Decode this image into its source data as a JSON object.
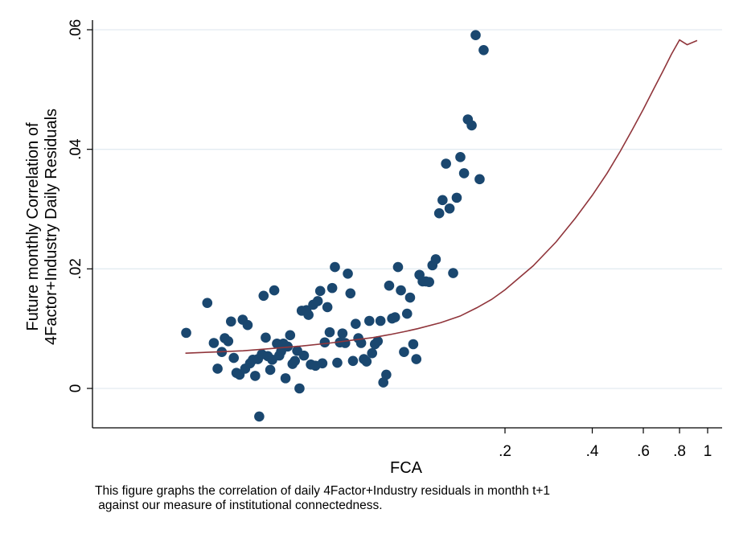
{
  "chart_data": {
    "type": "scatter",
    "xlabel": "FCA",
    "ylabel_lines": [
      "Future monthly Correlation of",
      "4Factor+Industry Daily Residuals"
    ],
    "x_scale": "log",
    "xlim": [
      0.015,
      1.0
    ],
    "ylim": [
      -0.0065,
      0.062
    ],
    "x_ticks": [
      {
        "value": 0.2,
        "label": ".2"
      },
      {
        "value": 0.4,
        "label": ".4"
      },
      {
        "value": 0.6,
        "label": ".6"
      },
      {
        "value": 0.8,
        "label": ".8"
      },
      {
        "value": 1.0,
        "label": "1"
      }
    ],
    "y_ticks": [
      {
        "value": 0,
        "label": "0"
      },
      {
        "value": 0.02,
        "label": ".02"
      },
      {
        "value": 0.04,
        "label": ".04"
      },
      {
        "value": 0.06,
        "label": ".06"
      }
    ],
    "grid": "horizontal",
    "marker_color": "#1a476f",
    "fit_color": "#90353b",
    "fit_curve": {
      "x": [
        0.0158,
        0.02,
        0.025,
        0.03,
        0.04,
        0.05,
        0.06,
        0.07,
        0.08,
        0.09,
        0.1,
        0.12,
        0.14,
        0.16,
        0.18,
        0.2,
        0.25,
        0.3,
        0.35,
        0.4,
        0.45,
        0.5,
        0.55,
        0.6,
        0.65,
        0.7,
        0.75,
        0.8,
        0.85,
        0.92
      ],
      "y": [
        0.0059,
        0.0061,
        0.0063,
        0.0066,
        0.0071,
        0.0076,
        0.0081,
        0.0085,
        0.009,
        0.0095,
        0.01,
        0.011,
        0.0121,
        0.0135,
        0.0149,
        0.0165,
        0.0205,
        0.0245,
        0.0285,
        0.0323,
        0.036,
        0.0397,
        0.0433,
        0.0467,
        0.05,
        0.053,
        0.0559,
        0.0583,
        0.0575,
        0.0582
      ]
    },
    "points": [
      {
        "x": 0.0159,
        "y": 0.0093
      },
      {
        "x": 0.0188,
        "y": 0.0143
      },
      {
        "x": 0.0198,
        "y": 0.0076
      },
      {
        "x": 0.0204,
        "y": 0.0033
      },
      {
        "x": 0.0211,
        "y": 0.0061
      },
      {
        "x": 0.0216,
        "y": 0.0084
      },
      {
        "x": 0.0222,
        "y": 0.0079
      },
      {
        "x": 0.0227,
        "y": 0.0112
      },
      {
        "x": 0.0232,
        "y": 0.0051
      },
      {
        "x": 0.0237,
        "y": 0.0026
      },
      {
        "x": 0.0243,
        "y": 0.0023
      },
      {
        "x": 0.0249,
        "y": 0.0115
      },
      {
        "x": 0.0254,
        "y": 0.0033
      },
      {
        "x": 0.0259,
        "y": 0.0106
      },
      {
        "x": 0.0264,
        "y": 0.0042
      },
      {
        "x": 0.027,
        "y": 0.0048
      },
      {
        "x": 0.0275,
        "y": 0.0021
      },
      {
        "x": 0.0281,
        "y": 0.0049
      },
      {
        "x": 0.0284,
        "y": -0.0047
      },
      {
        "x": 0.029,
        "y": 0.0057
      },
      {
        "x": 0.0294,
        "y": 0.0155
      },
      {
        "x": 0.0299,
        "y": 0.0085
      },
      {
        "x": 0.0304,
        "y": 0.0054
      },
      {
        "x": 0.031,
        "y": 0.0031
      },
      {
        "x": 0.0315,
        "y": 0.0048
      },
      {
        "x": 0.032,
        "y": 0.0164
      },
      {
        "x": 0.0327,
        "y": 0.0075
      },
      {
        "x": 0.0333,
        "y": 0.0055
      },
      {
        "x": 0.0338,
        "y": 0.0062
      },
      {
        "x": 0.0344,
        "y": 0.0075
      },
      {
        "x": 0.035,
        "y": 0.0017
      },
      {
        "x": 0.0356,
        "y": 0.007
      },
      {
        "x": 0.0363,
        "y": 0.0089
      },
      {
        "x": 0.037,
        "y": 0.0041
      },
      {
        "x": 0.0377,
        "y": 0.0046
      },
      {
        "x": 0.0384,
        "y": 0.0063
      },
      {
        "x": 0.0391,
        "y": 0.0
      },
      {
        "x": 0.0398,
        "y": 0.013
      },
      {
        "x": 0.0405,
        "y": 0.0055
      },
      {
        "x": 0.0413,
        "y": 0.0131
      },
      {
        "x": 0.042,
        "y": 0.0123
      },
      {
        "x": 0.0428,
        "y": 0.004
      },
      {
        "x": 0.0436,
        "y": 0.014
      },
      {
        "x": 0.0444,
        "y": 0.0038
      },
      {
        "x": 0.0452,
        "y": 0.0146
      },
      {
        "x": 0.0461,
        "y": 0.0163
      },
      {
        "x": 0.0469,
        "y": 0.0042
      },
      {
        "x": 0.0478,
        "y": 0.0077
      },
      {
        "x": 0.0488,
        "y": 0.0136
      },
      {
        "x": 0.0497,
        "y": 0.0094
      },
      {
        "x": 0.0507,
        "y": 0.0168
      },
      {
        "x": 0.0518,
        "y": 0.0203
      },
      {
        "x": 0.0528,
        "y": 0.0043
      },
      {
        "x": 0.0539,
        "y": 0.0077
      },
      {
        "x": 0.055,
        "y": 0.0092
      },
      {
        "x": 0.0562,
        "y": 0.0076
      },
      {
        "x": 0.0574,
        "y": 0.0192
      },
      {
        "x": 0.0586,
        "y": 0.0159
      },
      {
        "x": 0.0598,
        "y": 0.0046
      },
      {
        "x": 0.0611,
        "y": 0.0108
      },
      {
        "x": 0.0624,
        "y": 0.0084
      },
      {
        "x": 0.0638,
        "y": 0.0076
      },
      {
        "x": 0.0652,
        "y": 0.0049
      },
      {
        "x": 0.0666,
        "y": 0.0045
      },
      {
        "x": 0.0681,
        "y": 0.0113
      },
      {
        "x": 0.0696,
        "y": 0.0059
      },
      {
        "x": 0.0712,
        "y": 0.0074
      },
      {
        "x": 0.0728,
        "y": 0.0079
      },
      {
        "x": 0.0744,
        "y": 0.0113
      },
      {
        "x": 0.0761,
        "y": 0.001
      },
      {
        "x": 0.0779,
        "y": 0.0023
      },
      {
        "x": 0.0797,
        "y": 0.0172
      },
      {
        "x": 0.0816,
        "y": 0.0117
      },
      {
        "x": 0.0835,
        "y": 0.0119
      },
      {
        "x": 0.0855,
        "y": 0.0203
      },
      {
        "x": 0.0875,
        "y": 0.0164
      },
      {
        "x": 0.0897,
        "y": 0.0061
      },
      {
        "x": 0.0919,
        "y": 0.0125
      },
      {
        "x": 0.0941,
        "y": 0.0152
      },
      {
        "x": 0.0965,
        "y": 0.0074
      },
      {
        "x": 0.0989,
        "y": 0.0049
      },
      {
        "x": 0.1014,
        "y": 0.019
      },
      {
        "x": 0.104,
        "y": 0.0179
      },
      {
        "x": 0.1067,
        "y": 0.0179
      },
      {
        "x": 0.1095,
        "y": 0.0178
      },
      {
        "x": 0.1124,
        "y": 0.0206
      },
      {
        "x": 0.1154,
        "y": 0.0216
      },
      {
        "x": 0.1186,
        "y": 0.0293
      },
      {
        "x": 0.1218,
        "y": 0.0315
      },
      {
        "x": 0.1252,
        "y": 0.0376
      },
      {
        "x": 0.1288,
        "y": 0.0301
      },
      {
        "x": 0.1325,
        "y": 0.0193
      },
      {
        "x": 0.1363,
        "y": 0.0319
      },
      {
        "x": 0.1403,
        "y": 0.0387
      },
      {
        "x": 0.1445,
        "y": 0.036
      },
      {
        "x": 0.1489,
        "y": 0.045
      },
      {
        "x": 0.1535,
        "y": 0.044
      },
      {
        "x": 0.1584,
        "y": 0.0591
      },
      {
        "x": 0.1635,
        "y": 0.035
      },
      {
        "x": 0.1688,
        "y": 0.0566
      }
    ]
  },
  "caption": {
    "line1": "This figure graphs the correlation of daily 4Factor+Industry residuals in monthh t+1",
    "line2": " against our measure of institutional connectedness."
  }
}
